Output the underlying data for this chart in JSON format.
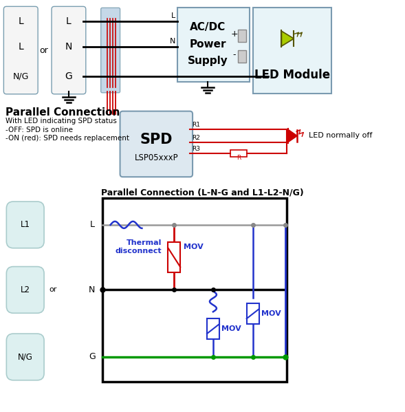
{
  "bg_color": "#ffffff",
  "title1": "Parallel Connection",
  "title1_sub1": "With LED indicating SPD status",
  "title1_sub2": "-OFF: SPD is online",
  "title1_sub3": "-ON (red): SPD needs replacement",
  "title2": "Parallel Connection (L-N-G and L1-L2-N/G)",
  "spd_label1": "SPD",
  "spd_label2": "LSP05xxxP",
  "acdc_label1": "AC/DC",
  "acdc_label2": "Power",
  "acdc_label3": "Supply",
  "led_module_label": "LED Module",
  "r1_label": "R1",
  "r2_label": "R2",
  "r3_label": "R3",
  "r_label": "R",
  "led_off_label": "LED normally off",
  "thermal_label": "Thermal\ndisconnect",
  "mov_label1": "MOV",
  "mov_label2": "MOV",
  "mov_label3": "MOV",
  "color_black": "#000000",
  "color_red": "#cc0000",
  "color_blue": "#2233cc",
  "color_green": "#009900",
  "color_gray": "#888888",
  "color_box_edge": "#7a9eb0",
  "color_box_face": "#ddeeff",
  "color_box_face2": "#e8f0f8",
  "color_conn_face": "#c5d8e8",
  "color_cap_edge": "#aacccc",
  "color_cap_face": "#ddf0f0"
}
